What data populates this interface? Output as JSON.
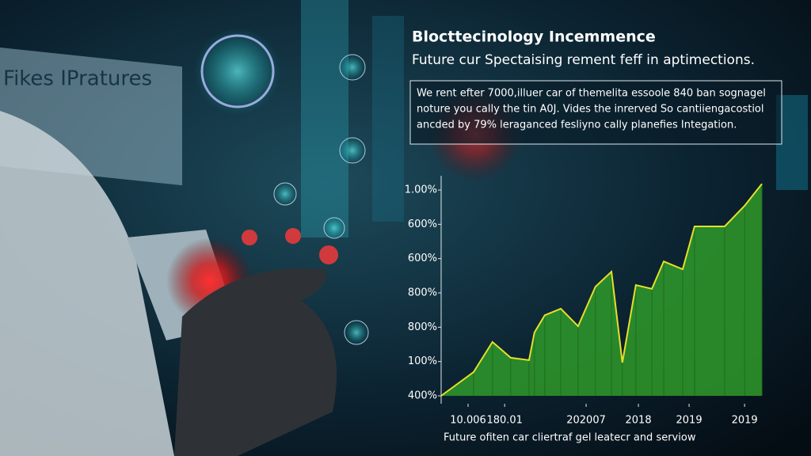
{
  "sign_text": "Fikes IPratures",
  "chart_data": {
    "type": "area",
    "title": "Blocttecinology Incemmence",
    "subtitle": "Future cur Spectaising rement feff in aptimections.",
    "annotation": [
      "We rent efter 7000,illuer car of themelita essoole 840 ban sognagel",
      "noture you cally the tin A0J. Vides the inrerved So cantiiengacostiol",
      "ancded by 79% leraganced fesliyno cally planefies Integation."
    ],
    "x_label": "Future ofiten car cliertraf gel leatecr and serviow",
    "xlim": [
      0,
      10
    ],
    "xticks": [
      {
        "value": 0.84,
        "label": "10.006"
      },
      {
        "value": 1.98,
        "label": "180.01"
      },
      {
        "value": 4.52,
        "label": "202007"
      },
      {
        "value": 6.15,
        "label": "2018"
      },
      {
        "value": 7.73,
        "label": "2019"
      },
      {
        "value": 9.46,
        "label": "2019"
      }
    ],
    "ylim": [
      0,
      6.4
    ],
    "yticks": [
      {
        "value": 0,
        "label": "400%"
      },
      {
        "value": 1,
        "label": "100%"
      },
      {
        "value": 2,
        "label": "800%"
      },
      {
        "value": 3,
        "label": "800%"
      },
      {
        "value": 4,
        "label": "600%"
      },
      {
        "value": 5,
        "label": "600%"
      },
      {
        "value": 6,
        "label": "1.00%"
      }
    ],
    "series": [
      {
        "color": "#2f9a2a",
        "line_color": "#e6e02a",
        "x": [
          0,
          1.01,
          1.6,
          2.17,
          2.74,
          2.91,
          3.23,
          3.73,
          4.27,
          4.81,
          5.31,
          5.65,
          6.07,
          6.57,
          6.94,
          7.53,
          7.9,
          8.84,
          9.46,
          10
        ],
        "values": [
          0,
          0.69,
          1.57,
          1.11,
          1.04,
          1.85,
          2.35,
          2.54,
          2.03,
          3.18,
          3.62,
          0.97,
          3.23,
          3.12,
          3.92,
          3.69,
          4.94,
          4.94,
          5.54,
          6.18
        ]
      }
    ]
  }
}
